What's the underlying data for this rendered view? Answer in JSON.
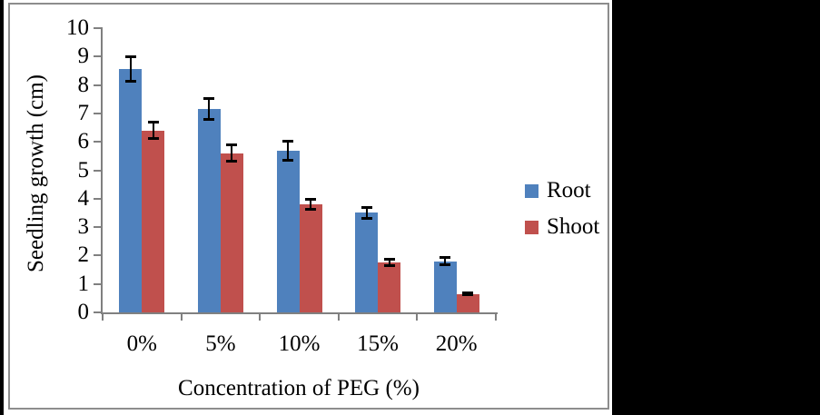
{
  "chart_data": {
    "type": "bar",
    "title": "",
    "xlabel": "Concentration of PEG (%)",
    "ylabel": "Seedling growth (cm)",
    "categories": [
      "0%",
      "5%",
      "10%",
      "15%",
      "20%"
    ],
    "series": [
      {
        "name": "Root",
        "color": "#4F81BD",
        "values": [
          8.55,
          7.15,
          5.7,
          3.5,
          1.8
        ],
        "errors": [
          0.45,
          0.38,
          0.35,
          0.22,
          0.15
        ]
      },
      {
        "name": "Shoot",
        "color": "#C0504D",
        "values": [
          6.4,
          5.6,
          3.8,
          1.75,
          0.65
        ],
        "errors": [
          0.3,
          0.3,
          0.2,
          0.12,
          0.05
        ]
      }
    ],
    "ylim": [
      0,
      10
    ],
    "ytick_step": 1,
    "yticks": [
      "0",
      "1",
      "2",
      "3",
      "4",
      "5",
      "6",
      "7",
      "8",
      "9",
      "10"
    ],
    "grid": false,
    "error_bars": true,
    "legend_position": "right",
    "axis_color": "#808080",
    "error_bar_color": "#000000",
    "plot_background": "#ffffff",
    "panel_border_color": "#8d8d8d"
  }
}
